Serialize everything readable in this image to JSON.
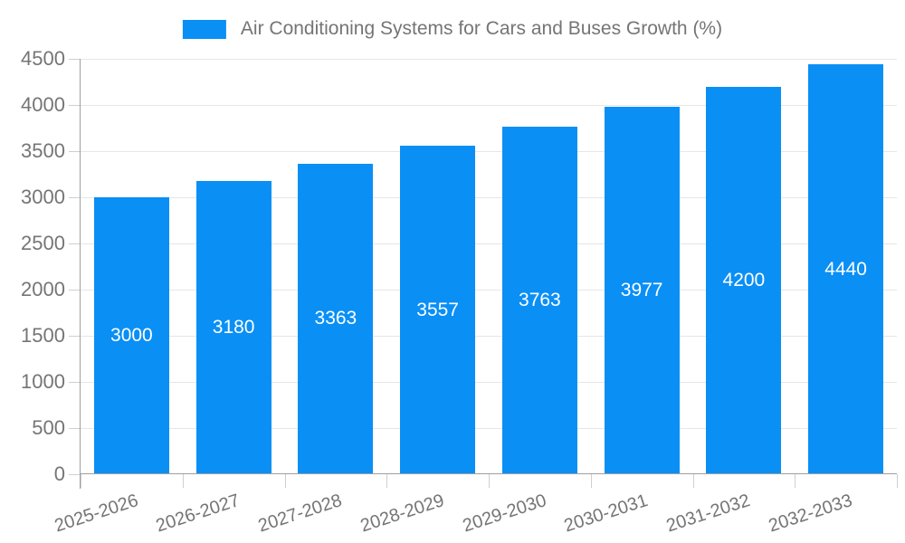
{
  "legend": {
    "label": "Air Conditioning Systems for Cars and Buses Growth (%)"
  },
  "chart_data": {
    "type": "bar",
    "title": "Air Conditioning Systems for Cars and Buses Growth (%)",
    "categories": [
      "2025-2026",
      "2026-2027",
      "2027-2028",
      "2028-2029",
      "2029-2030",
      "2030-2031",
      "2031-2032",
      "2032-2033"
    ],
    "values": [
      3000,
      3180,
      3363,
      3557,
      3763,
      3977,
      4200,
      4440
    ],
    "xlabel": "",
    "ylabel": "",
    "ylim": [
      0,
      4500
    ],
    "ytick_step": 500,
    "yticks": [
      0,
      500,
      1000,
      1500,
      2000,
      2500,
      3000,
      3500,
      4000,
      4500
    ],
    "grid": true,
    "legend_position": "top-center",
    "bar_color": "#0A8FF5",
    "bar_label_color": "#ffffff",
    "axis_text_color": "#757575",
    "gridline_color": "#e6e6e6",
    "axis_line_color": "#9e9e9e"
  }
}
